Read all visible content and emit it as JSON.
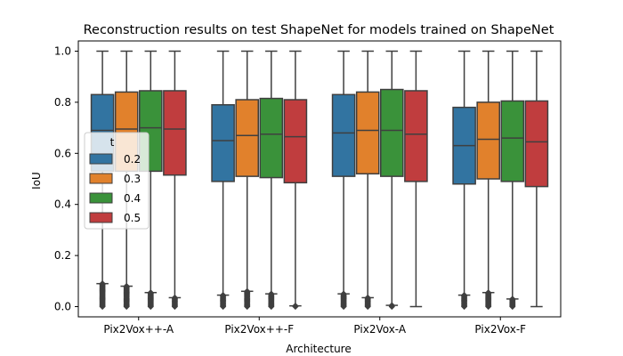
{
  "chart_data": {
    "type": "box",
    "title": "Reconstruction results on test ShapeNet for models trained on ShapeNet",
    "xlabel": "Architecture",
    "ylabel": "IoU",
    "ylim": [
      -0.04,
      1.04
    ],
    "yticks": [
      "0.0",
      "0.2",
      "0.4",
      "0.6",
      "0.8",
      "1.0"
    ],
    "grid": false,
    "categories": [
      "Pix2Vox++-A",
      "Pix2Vox++-F",
      "Pix2Vox-A",
      "Pix2Vox-F"
    ],
    "legend": {
      "title": "t",
      "placement": "center-left"
    },
    "series": [
      {
        "name": "0.2",
        "color": "#3274a1",
        "boxes": [
          {
            "whisker_low": 0.09,
            "q1": 0.53,
            "median": 0.69,
            "q3": 0.83,
            "whisker_high": 1.0,
            "outliers_range": [
              0.0,
              0.09
            ]
          },
          {
            "whisker_low": 0.045,
            "q1": 0.49,
            "median": 0.65,
            "q3": 0.79,
            "whisker_high": 1.0,
            "outliers_range": [
              0.0,
              0.045
            ]
          },
          {
            "whisker_low": 0.05,
            "q1": 0.51,
            "median": 0.68,
            "q3": 0.83,
            "whisker_high": 1.0,
            "outliers_range": [
              0.0,
              0.05
            ]
          },
          {
            "whisker_low": 0.045,
            "q1": 0.48,
            "median": 0.63,
            "q3": 0.78,
            "whisker_high": 1.0,
            "outliers_range": [
              0.0,
              0.045
            ]
          }
        ]
      },
      {
        "name": "0.3",
        "color": "#e1812c",
        "boxes": [
          {
            "whisker_low": 0.08,
            "q1": 0.53,
            "median": 0.695,
            "q3": 0.84,
            "whisker_high": 1.0,
            "outliers_range": [
              0.0,
              0.08
            ]
          },
          {
            "whisker_low": 0.06,
            "q1": 0.51,
            "median": 0.67,
            "q3": 0.81,
            "whisker_high": 1.0,
            "outliers_range": [
              0.0,
              0.06
            ]
          },
          {
            "whisker_low": 0.035,
            "q1": 0.52,
            "median": 0.69,
            "q3": 0.84,
            "whisker_high": 1.0,
            "outliers_range": [
              0.0,
              0.035
            ]
          },
          {
            "whisker_low": 0.055,
            "q1": 0.5,
            "median": 0.655,
            "q3": 0.8,
            "whisker_high": 1.0,
            "outliers_range": [
              0.0,
              0.055
            ]
          }
        ]
      },
      {
        "name": "0.4",
        "color": "#3a923a",
        "boxes": [
          {
            "whisker_low": 0.055,
            "q1": 0.53,
            "median": 0.7,
            "q3": 0.845,
            "whisker_high": 1.0,
            "outliers_range": [
              0.0,
              0.055
            ]
          },
          {
            "whisker_low": 0.05,
            "q1": 0.505,
            "median": 0.675,
            "q3": 0.815,
            "whisker_high": 1.0,
            "outliers_range": [
              0.0,
              0.05
            ]
          },
          {
            "whisker_low": 0.005,
            "q1": 0.51,
            "median": 0.69,
            "q3": 0.85,
            "whisker_high": 1.0,
            "outliers_range": [
              0.0,
              0.005
            ]
          },
          {
            "whisker_low": 0.03,
            "q1": 0.49,
            "median": 0.66,
            "q3": 0.805,
            "whisker_high": 1.0,
            "outliers_range": [
              0.0,
              0.03
            ]
          }
        ]
      },
      {
        "name": "0.5",
        "color": "#c03d3e",
        "boxes": [
          {
            "whisker_low": 0.035,
            "q1": 0.515,
            "median": 0.695,
            "q3": 0.845,
            "whisker_high": 1.0,
            "outliers_range": [
              0.0,
              0.035
            ]
          },
          {
            "whisker_low": 0.003,
            "q1": 0.485,
            "median": 0.665,
            "q3": 0.81,
            "whisker_high": 1.0,
            "outliers_range": [
              0.0,
              0.003
            ]
          },
          {
            "whisker_low": 0.0,
            "q1": 0.49,
            "median": 0.675,
            "q3": 0.845,
            "whisker_high": 1.0,
            "outliers_range": []
          },
          {
            "whisker_low": 0.0,
            "q1": 0.47,
            "median": 0.645,
            "q3": 0.805,
            "whisker_high": 1.0,
            "outliers_range": []
          }
        ]
      }
    ]
  }
}
